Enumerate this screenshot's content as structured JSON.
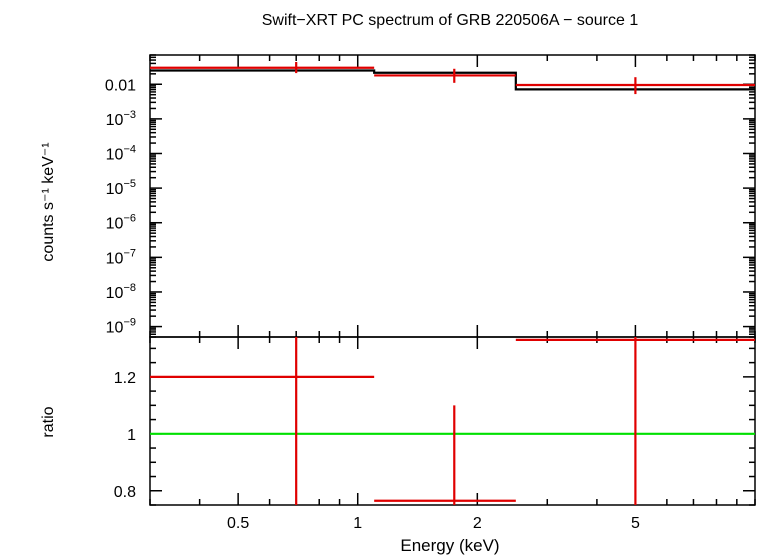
{
  "chart_data": [
    {
      "type": "scatter",
      "panel": "spectrum",
      "title": "Swift−XRT PC spectrum of GRB 220506A − source 1",
      "xlabel": "Energy (keV)",
      "ylabel": "counts s⁻¹ keV⁻¹",
      "x_scale": "log",
      "y_scale": "log",
      "xlim": [
        0.3,
        10
      ],
      "ylim": [
        5e-10,
        0.07
      ],
      "y_ticks": [
        {
          "value": 0.01,
          "label": "0.01"
        },
        {
          "value": 0.001,
          "base": "10",
          "exp": "−3"
        },
        {
          "value": 0.0001,
          "base": "10",
          "exp": "−4"
        },
        {
          "value": 1e-05,
          "base": "10",
          "exp": "−5"
        },
        {
          "value": 1e-06,
          "base": "10",
          "exp": "−6"
        },
        {
          "value": 1e-07,
          "base": "10",
          "exp": "−7"
        },
        {
          "value": 1e-08,
          "base": "10",
          "exp": "−8"
        },
        {
          "value": 1e-09,
          "base": "10",
          "exp": "−9"
        }
      ],
      "data_bins": [
        {
          "x_lo": 0.3,
          "x_hi": 1.1,
          "x": 0.7,
          "y": 0.03,
          "y_lo": 0.021,
          "y_hi": 0.044
        },
        {
          "x_lo": 1.1,
          "x_hi": 2.5,
          "x": 1.75,
          "y": 0.018,
          "y_lo": 0.011,
          "y_hi": 0.028
        },
        {
          "x_lo": 2.5,
          "x_hi": 10,
          "x": 5.0,
          "y": 0.0095,
          "y_lo": 0.0052,
          "y_hi": 0.016
        }
      ],
      "model": [
        {
          "x_lo": 0.3,
          "x_hi": 1.1,
          "y": 0.025
        },
        {
          "x_lo": 1.1,
          "x_hi": 2.5,
          "y": 0.0215
        },
        {
          "x_lo": 2.5,
          "x_hi": 10,
          "y": 0.0071
        }
      ],
      "colors": {
        "data": "#e00000",
        "model": "#000000"
      }
    },
    {
      "type": "scatter",
      "panel": "ratio",
      "xlabel": "Energy (keV)",
      "ylabel": "ratio",
      "x_scale": "log",
      "xlim": [
        0.3,
        10
      ],
      "ylim": [
        0.75,
        1.34
      ],
      "x_ticks": [
        {
          "value": 0.5,
          "label": "0.5"
        },
        {
          "value": 1,
          "label": "1"
        },
        {
          "value": 2,
          "label": "2"
        },
        {
          "value": 5,
          "label": "5"
        }
      ],
      "y_ticks": [
        {
          "value": 0.8,
          "label": "0.8"
        },
        {
          "value": 1,
          "label": "1"
        },
        {
          "value": 1.2,
          "label": "1.2"
        }
      ],
      "reference_line": 1,
      "data_bins": [
        {
          "x_lo": 0.3,
          "x_hi": 1.1,
          "x": 0.7,
          "y": 1.2,
          "y_lo": 0.75,
          "y_hi": 1.34
        },
        {
          "x_lo": 1.1,
          "x_hi": 2.5,
          "x": 1.75,
          "y": 0.765,
          "y_lo": 0.75,
          "y_hi": 1.1
        },
        {
          "x_lo": 2.5,
          "x_hi": 10,
          "x": 5.0,
          "y": 1.33,
          "y_lo": 0.75,
          "y_hi": 1.34
        }
      ],
      "colors": {
        "data": "#e00000",
        "reference": "#00e000"
      }
    }
  ]
}
